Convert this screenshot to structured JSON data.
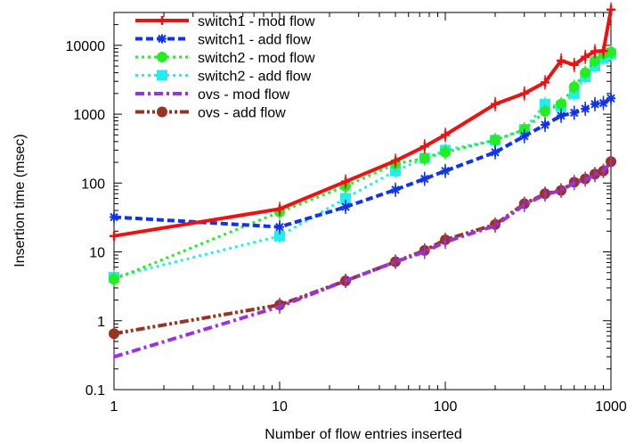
{
  "chart_data": {
    "type": "line",
    "xlabel": "Number of flow entries inserted",
    "ylabel": "Insertion time (msec)",
    "xscale": "log",
    "yscale": "log",
    "xlim": [
      1,
      1000
    ],
    "ylim": [
      0.1,
      30000
    ],
    "x_ticks": [
      {
        "value": 1,
        "label": "1"
      },
      {
        "value": 10,
        "label": "10"
      },
      {
        "value": 100,
        "label": "100"
      },
      {
        "value": 1000,
        "label": "1000"
      }
    ],
    "y_ticks": [
      {
        "value": 0.1,
        "label": "0.1"
      },
      {
        "value": 1,
        "label": "1"
      },
      {
        "value": 10,
        "label": "10"
      },
      {
        "value": 100,
        "label": "100"
      },
      {
        "value": 1000,
        "label": "1000"
      },
      {
        "value": 10000,
        "label": "10000"
      }
    ],
    "grid": false,
    "legend_position": "top-left",
    "series": [
      {
        "name": "switch1 - mod flow",
        "color": "#ee1111",
        "dash": "solid",
        "marker": "plus",
        "x": [
          1,
          10,
          25,
          50,
          75,
          100,
          200,
          300,
          400,
          500,
          600,
          700,
          800,
          900,
          1000
        ],
        "y": [
          17,
          42,
          105,
          210,
          340,
          500,
          1400,
          2000,
          2900,
          6000,
          5200,
          6800,
          8200,
          8300,
          33000
        ]
      },
      {
        "name": "switch1 - add flow",
        "color": "#1133ee",
        "dash": "dashed",
        "marker": "asterisk",
        "x": [
          1,
          10,
          25,
          50,
          75,
          100,
          200,
          300,
          400,
          500,
          600,
          700,
          800,
          900,
          1000
        ],
        "y": [
          32,
          23,
          45,
          80,
          115,
          150,
          280,
          480,
          700,
          950,
          1050,
          1200,
          1400,
          1450,
          1700
        ]
      },
      {
        "name": "switch2 - mod flow",
        "color": "#22ee22",
        "dash": "dotted",
        "marker": "circle",
        "x": [
          1,
          10,
          25,
          50,
          75,
          100,
          200,
          300,
          400,
          500,
          600,
          700,
          800,
          900,
          1000
        ],
        "y": [
          4,
          38,
          90,
          190,
          230,
          280,
          420,
          600,
          1100,
          1400,
          2500,
          4000,
          6000,
          7500,
          8000
        ]
      },
      {
        "name": "switch2 - add flow",
        "color": "#22eeee",
        "dash": "dotted",
        "marker": "square",
        "x": [
          1,
          10,
          25,
          50,
          75,
          100,
          200,
          300,
          400,
          500,
          600,
          700,
          800,
          900,
          1000
        ],
        "y": [
          4.3,
          17,
          60,
          150,
          230,
          300,
          420,
          600,
          1400,
          1300,
          2000,
          3500,
          5000,
          6500,
          7500
        ]
      },
      {
        "name": "ovs - mod flow",
        "color": "#9933dd",
        "dash": "dashdot",
        "marker": "none",
        "x": [
          1,
          10,
          25,
          50,
          75,
          100,
          200,
          300,
          400,
          500,
          600,
          700,
          800,
          900,
          1000
        ],
        "y": [
          0.3,
          1.6,
          3.8,
          7.2,
          10,
          14,
          24,
          48,
          68,
          78,
          100,
          112,
          130,
          150,
          200
        ]
      },
      {
        "name": "ovs - add flow",
        "color": "#993322",
        "dash": "dashdotdot",
        "marker": "circle",
        "x": [
          1,
          10,
          25,
          50,
          75,
          100,
          200,
          300,
          400,
          500,
          600,
          700,
          800,
          900,
          1000
        ],
        "y": [
          0.65,
          1.7,
          3.8,
          7.2,
          10.5,
          15,
          25,
          50,
          70,
          78,
          103,
          115,
          135,
          150,
          205
        ]
      }
    ]
  }
}
